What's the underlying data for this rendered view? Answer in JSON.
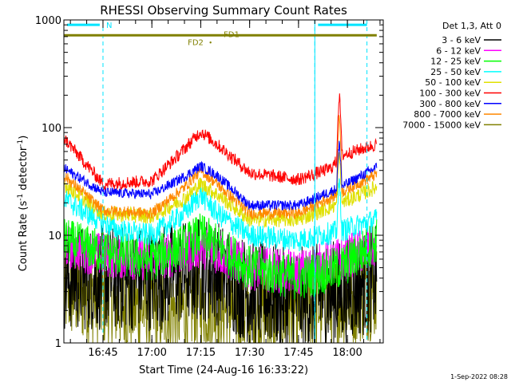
{
  "chart_data": {
    "type": "line",
    "title": "RHESSI Observing Summary Count Rates",
    "xlabel": "Start Time (24-Aug-16 16:33:22)",
    "ylabel_main": "Count Rate (s",
    "ylabel_sup1": "-1",
    "ylabel_mid": " detector",
    "ylabel_sup2": "-1",
    "ylabel_end": ")",
    "yscale": "log",
    "ylim": [
      1,
      1000
    ],
    "xlim": [
      "16:33",
      "18:11"
    ],
    "x_ticks": [
      "16:45",
      "17:00",
      "17:15",
      "17:30",
      "17:45",
      "18:00"
    ],
    "y_ticks": [
      "1",
      "10",
      "100",
      "1000"
    ],
    "legend_header": "Det 1,3, Att 0",
    "legend_position": "right",
    "series": [
      {
        "name": "3 - 6 keV",
        "color": "#000000",
        "x": [
          "16:33",
          "16:45",
          "17:00",
          "17:10",
          "17:15",
          "17:20",
          "17:30",
          "17:45",
          "17:58",
          "18:09"
        ],
        "y": [
          4,
          4,
          4,
          4.5,
          5,
          4.5,
          3,
          2.5,
          3,
          4
        ]
      },
      {
        "name": "6 - 12 keV",
        "color": "#ff00ff",
        "x": [
          "16:33",
          "16:45",
          "17:00",
          "17:10",
          "17:15",
          "17:20",
          "17:30",
          "17:45",
          "17:58",
          "18:09"
        ],
        "y": [
          8,
          6.5,
          6,
          7,
          8,
          7,
          5,
          4.5,
          6,
          8
        ]
      },
      {
        "name": "12 - 25 keV",
        "color": "#00ff00",
        "x": [
          "16:33",
          "16:45",
          "17:00",
          "17:10",
          "17:15",
          "17:20",
          "17:30",
          "17:45",
          "17:58",
          "18:09"
        ],
        "y": [
          9,
          7,
          6,
          8,
          10,
          8,
          5,
          4,
          5,
          9
        ]
      },
      {
        "name": "25 - 50 keV",
        "color": "#00ffff",
        "x": [
          "16:33",
          "16:40",
          "16:50",
          "17:00",
          "17:10",
          "17:15",
          "17:20",
          "17:30",
          "17:45",
          "17:58",
          "18:09"
        ],
        "y": [
          22,
          16,
          11,
          10,
          16,
          24,
          16,
          10,
          9,
          11,
          14
        ]
      },
      {
        "name": "50 - 100 keV",
        "color": "#e0e000",
        "x": [
          "16:33",
          "16:45",
          "17:00",
          "17:10",
          "17:15",
          "17:20",
          "17:30",
          "17:45",
          "17:58",
          "18:09"
        ],
        "y": [
          30,
          16,
          15,
          22,
          30,
          24,
          14,
          14,
          20,
          28
        ]
      },
      {
        "name": "100 - 300 keV",
        "color": "#ff0000",
        "x": [
          "16:33",
          "16:45",
          "17:00",
          "17:08",
          "17:15",
          "17:20",
          "17:30",
          "17:45",
          "17:55",
          "17:58",
          "18:09"
        ],
        "y": [
          80,
          30,
          32,
          55,
          92,
          70,
          38,
          33,
          42,
          55,
          70
        ]
      },
      {
        "name": "300 - 800 keV",
        "color": "#0000ff",
        "x": [
          "16:33",
          "16:45",
          "17:00",
          "17:10",
          "17:15",
          "17:20",
          "17:30",
          "17:45",
          "17:58",
          "18:09"
        ],
        "y": [
          42,
          25,
          24,
          35,
          44,
          36,
          19,
          19,
          28,
          43
        ]
      },
      {
        "name": "800 - 7000 keV",
        "color": "#ff8800",
        "x": [
          "16:33",
          "16:45",
          "17:00",
          "17:10",
          "17:15",
          "17:20",
          "17:30",
          "17:45",
          "17:58",
          "18:09"
        ],
        "y": [
          36,
          17,
          16,
          28,
          40,
          30,
          16,
          16,
          25,
          37
        ]
      },
      {
        "name": "7000 - 15000 keV",
        "color": "#808000",
        "x": [
          "16:33",
          "16:45",
          "17:00",
          "17:10",
          "17:15",
          "17:20",
          "17:30",
          "17:45",
          "17:58",
          "18:09"
        ],
        "y": [
          3,
          2.5,
          2,
          2,
          2.5,
          2.2,
          1.8,
          2,
          2.5,
          3
        ]
      }
    ],
    "flags": {
      "n_label": "N",
      "fd1_label": "FD1",
      "fd2_label": "FD2"
    },
    "footer_timestamp": "1-Sep-2022 08:28"
  }
}
